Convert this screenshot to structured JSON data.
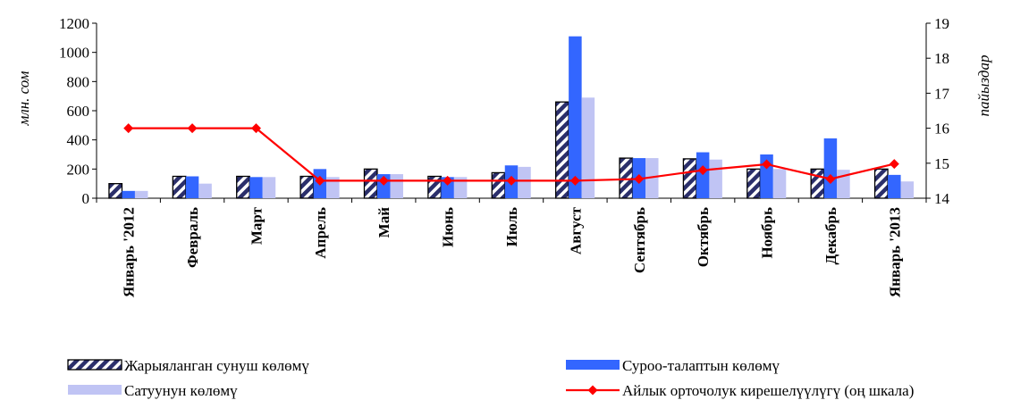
{
  "chart_data": {
    "type": "bar",
    "categories": [
      "Январь '2012",
      "Февраль",
      "Март",
      "Апрель",
      "Май",
      "Июнь",
      "Июль",
      "Август",
      "Сентябрь",
      "Октябрь",
      "Ноябрь",
      "Декабрь",
      "Январь '2013"
    ],
    "ylabel": "млн. сом",
    "y2label": "пайыздар",
    "ylim": [
      0,
      1200
    ],
    "y2lim": [
      14,
      19
    ],
    "yticks": [
      "0",
      "200",
      "400",
      "600",
      "800",
      "1000",
      "1200"
    ],
    "y2ticks": [
      "14",
      "15",
      "16",
      "17",
      "18",
      "19"
    ],
    "series": [
      {
        "name": "Жарыяланган сунуш көлөмү",
        "type": "bar",
        "axis": "left",
        "color": "#2b2f6b",
        "pattern": "diagonal-stripes",
        "values": [
          100,
          150,
          150,
          150,
          200,
          150,
          175,
          660,
          275,
          270,
          200,
          200,
          200
        ]
      },
      {
        "name": "Суроо-талаптын көлөмү",
        "type": "bar",
        "axis": "left",
        "color": "#3366ff",
        "values": [
          50,
          150,
          145,
          200,
          165,
          145,
          225,
          1110,
          275,
          315,
          300,
          410,
          160
        ]
      },
      {
        "name": "Сатуунун көлөмү",
        "type": "bar",
        "axis": "left",
        "color": "#c0c4f4",
        "values": [
          50,
          100,
          145,
          145,
          165,
          145,
          215,
          690,
          275,
          265,
          200,
          195,
          115
        ]
      },
      {
        "name": "Айлык орточолук кирешелүүлүгү (оң шкала)",
        "type": "line",
        "axis": "right",
        "color": "#ff0000",
        "marker": "diamond",
        "values": [
          16.0,
          16.0,
          16.0,
          14.5,
          14.5,
          14.5,
          14.5,
          14.5,
          14.55,
          14.8,
          14.97,
          14.55,
          14.98
        ]
      }
    ],
    "grid": false,
    "legend": "bottom"
  }
}
